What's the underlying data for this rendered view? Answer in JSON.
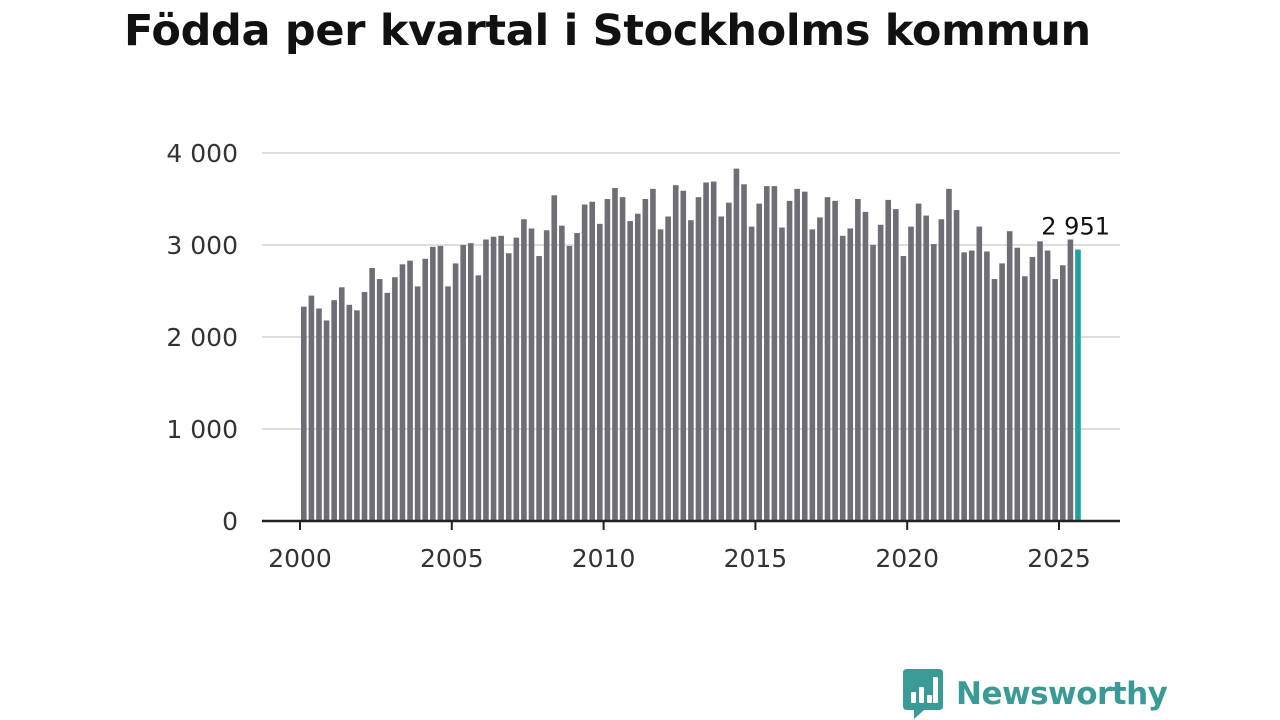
{
  "title": "Födda per kvartal i Stockholms kommun",
  "brand": {
    "name": "Newsworthy",
    "color": "#3a9a96",
    "icon": "bar-chart-speech-bubble-icon"
  },
  "chart_data": {
    "type": "bar",
    "x_start_year": 2000,
    "values": [
      2330,
      2450,
      2310,
      2180,
      2400,
      2540,
      2350,
      2290,
      2490,
      2750,
      2630,
      2480,
      2650,
      2790,
      2830,
      2550,
      2850,
      2980,
      2990,
      2550,
      2800,
      3000,
      3020,
      2670,
      3060,
      3090,
      3100,
      2910,
      3080,
      3280,
      3180,
      2880,
      3160,
      3540,
      3210,
      2990,
      3130,
      3440,
      3470,
      3230,
      3500,
      3620,
      3520,
      3260,
      3340,
      3500,
      3610,
      3170,
      3310,
      3650,
      3590,
      3270,
      3520,
      3680,
      3690,
      3310,
      3460,
      3830,
      3660,
      3200,
      3450,
      3640,
      3640,
      3190,
      3480,
      3610,
      3580,
      3170,
      3300,
      3520,
      3480,
      3100,
      3180,
      3500,
      3360,
      3000,
      3220,
      3490,
      3390,
      2880,
      3200,
      3450,
      3320,
      3010,
      3280,
      3610,
      3380,
      2920,
      2940,
      3200,
      2930,
      2630,
      2800,
      3150,
      2970,
      2660,
      2870,
      3040,
      2940,
      2630,
      2780,
      3060,
      2951
    ],
    "highlight": {
      "index": 102,
      "label": "2 951",
      "color": "#1fa19c"
    },
    "bar_color": "#6f6e76",
    "ylim": [
      0,
      4000
    ],
    "yticks": [
      0,
      1000,
      2000,
      3000,
      4000
    ],
    "ytick_labels": [
      "0",
      "1 000",
      "2 000",
      "3 000",
      "4 000"
    ],
    "xticks": [
      2000,
      2005,
      2010,
      2015,
      2020,
      2025
    ],
    "xtick_labels": [
      "2000",
      "2005",
      "2010",
      "2015",
      "2020",
      "2025"
    ],
    "grid": true,
    "xlabel": "",
    "ylabel": ""
  }
}
